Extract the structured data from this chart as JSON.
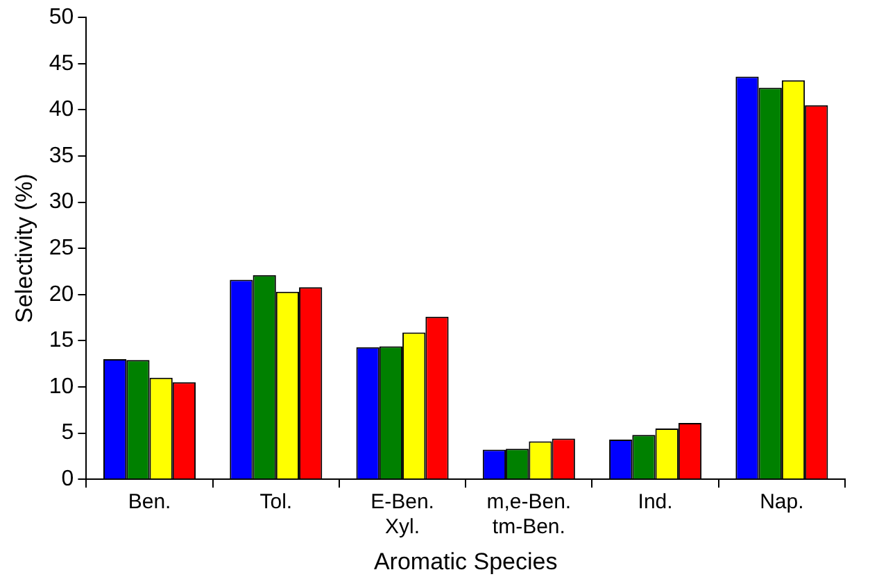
{
  "chart_data": {
    "type": "bar",
    "xlabel": "Aromatic Species",
    "ylabel": "Selectivity (%)",
    "categories": [
      "Ben.",
      "Tol.",
      "E-Ben.\nXyl.",
      "m,e-Ben.\ntm-Ben.",
      "Ind.",
      "Nap."
    ],
    "series": [
      {
        "color": "#0000ff",
        "values": [
          13.0,
          21.6,
          14.3,
          3.2,
          4.3,
          43.6
        ]
      },
      {
        "color": "#008000",
        "values": [
          12.9,
          22.1,
          14.4,
          3.3,
          4.8,
          42.4
        ]
      },
      {
        "color": "#ffff00",
        "values": [
          11.0,
          20.3,
          15.9,
          4.1,
          5.5,
          43.2
        ]
      },
      {
        "color": "#ff0000",
        "values": [
          10.5,
          20.8,
          17.6,
          4.4,
          6.1,
          40.5
        ]
      }
    ],
    "ylim": [
      0,
      50
    ],
    "yticks": [
      0,
      5,
      10,
      15,
      20,
      25,
      30,
      35,
      40,
      45,
      50
    ],
    "grid": false,
    "legend": false
  }
}
